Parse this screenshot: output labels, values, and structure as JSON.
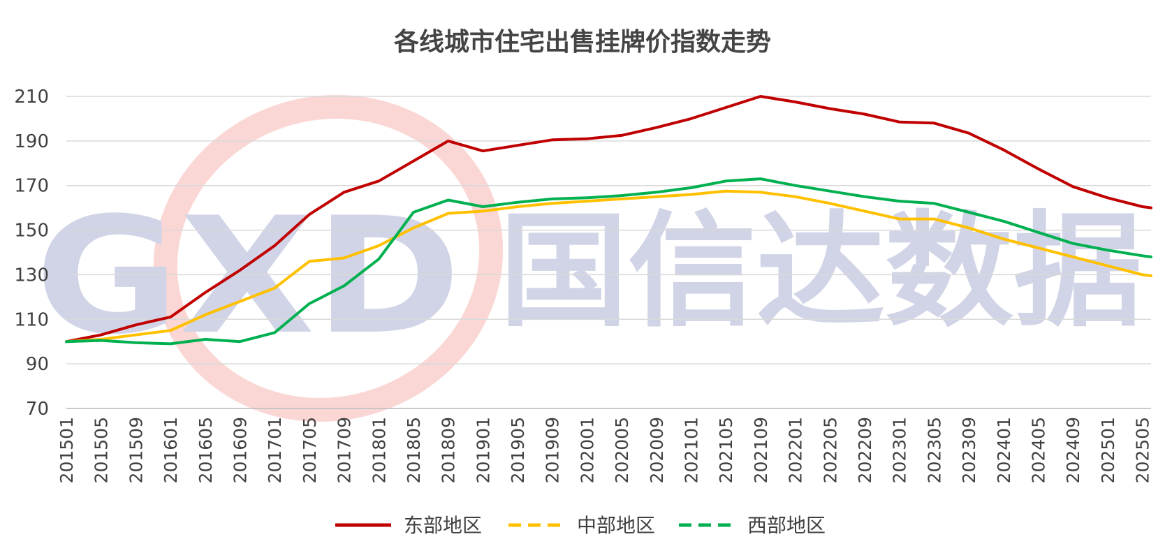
{
  "chart_data": {
    "type": "line",
    "title": "各线城市住宅出售挂牌价指数走势",
    "xlabel": "",
    "ylabel": "",
    "ylim": [
      70,
      210
    ],
    "yticks": [
      70,
      90,
      110,
      130,
      150,
      170,
      190,
      210
    ],
    "x_tick_labels": [
      "201501",
      "201505",
      "201509",
      "201601",
      "201605",
      "201609",
      "201701",
      "201705",
      "201709",
      "201801",
      "201805",
      "201809",
      "201901",
      "201905",
      "201909",
      "202001",
      "202005",
      "202009",
      "202101",
      "202105",
      "202109",
      "202201",
      "202205",
      "202209",
      "202301",
      "202305",
      "202309",
      "202401",
      "202405",
      "202409",
      "202501",
      "202505"
    ],
    "x_start": "201501",
    "x_end": "202506",
    "grid": "horizontal",
    "legend": "bottom",
    "series": [
      {
        "name": "东部地区",
        "color": "#C00000",
        "dash": "solid",
        "points": [
          [
            "201501",
            100
          ],
          [
            "201505",
            103
          ],
          [
            "201509",
            107.5
          ],
          [
            "201601",
            111
          ],
          [
            "201605",
            122
          ],
          [
            "201609",
            132
          ],
          [
            "201701",
            143
          ],
          [
            "201705",
            157
          ],
          [
            "201709",
            167
          ],
          [
            "201801",
            172
          ],
          [
            "201805",
            181
          ],
          [
            "201809",
            190
          ],
          [
            "201901",
            185.5
          ],
          [
            "201905",
            188
          ],
          [
            "201909",
            190.5
          ],
          [
            "202001",
            191
          ],
          [
            "202005",
            192.5
          ],
          [
            "202009",
            196
          ],
          [
            "202101",
            200
          ],
          [
            "202105",
            205
          ],
          [
            "202109",
            210
          ],
          [
            "202201",
            207.5
          ],
          [
            "202205",
            204.5
          ],
          [
            "202209",
            202
          ],
          [
            "202301",
            198.5
          ],
          [
            "202305",
            198
          ],
          [
            "202309",
            193.5
          ],
          [
            "202401",
            186
          ],
          [
            "202405",
            177.5
          ],
          [
            "202409",
            169.5
          ],
          [
            "202501",
            164.5
          ],
          [
            "202505",
            160.5
          ],
          [
            "202506",
            160
          ]
        ]
      },
      {
        "name": "中部地区",
        "color": "#FFC000",
        "dash": "dashed",
        "points": [
          [
            "201501",
            100
          ],
          [
            "201505",
            101
          ],
          [
            "201509",
            103
          ],
          [
            "201601",
            105
          ],
          [
            "201605",
            112
          ],
          [
            "201609",
            118
          ],
          [
            "201701",
            124
          ],
          [
            "201705",
            136
          ],
          [
            "201709",
            137.5
          ],
          [
            "201801",
            143
          ],
          [
            "201805",
            151
          ],
          [
            "201809",
            157.5
          ],
          [
            "201901",
            158.5
          ],
          [
            "201905",
            160.5
          ],
          [
            "201909",
            162
          ],
          [
            "202001",
            163
          ],
          [
            "202005",
            164
          ],
          [
            "202009",
            165
          ],
          [
            "202101",
            166
          ],
          [
            "202105",
            167.5
          ],
          [
            "202109",
            167
          ],
          [
            "202201",
            165
          ],
          [
            "202205",
            162
          ],
          [
            "202209",
            158.5
          ],
          [
            "202301",
            155
          ],
          [
            "202305",
            155
          ],
          [
            "202309",
            151
          ],
          [
            "202401",
            146
          ],
          [
            "202405",
            142
          ],
          [
            "202409",
            138
          ],
          [
            "202501",
            134
          ],
          [
            "202505",
            130
          ],
          [
            "202506",
            129.5
          ]
        ]
      },
      {
        "name": "西部地区",
        "color": "#00B050",
        "dash": "dashed",
        "points": [
          [
            "201501",
            100
          ],
          [
            "201505",
            100.5
          ],
          [
            "201509",
            99.5
          ],
          [
            "201601",
            99
          ],
          [
            "201605",
            101
          ],
          [
            "201609",
            100
          ],
          [
            "201701",
            104
          ],
          [
            "201705",
            117
          ],
          [
            "201709",
            125
          ],
          [
            "201801",
            137
          ],
          [
            "201805",
            158
          ],
          [
            "201809",
            163.5
          ],
          [
            "201901",
            160.5
          ],
          [
            "201905",
            162.5
          ],
          [
            "201909",
            164
          ],
          [
            "202001",
            164.5
          ],
          [
            "202005",
            165.5
          ],
          [
            "202009",
            167
          ],
          [
            "202101",
            169
          ],
          [
            "202105",
            172
          ],
          [
            "202109",
            173
          ],
          [
            "202201",
            170
          ],
          [
            "202205",
            167.5
          ],
          [
            "202209",
            165
          ],
          [
            "202301",
            163
          ],
          [
            "202305",
            162
          ],
          [
            "202309",
            158
          ],
          [
            "202401",
            154
          ],
          [
            "202405",
            149
          ],
          [
            "202409",
            144
          ],
          [
            "202501",
            141
          ],
          [
            "202505",
            138.5
          ],
          [
            "202506",
            138
          ]
        ]
      }
    ]
  },
  "watermark": {
    "logo_text": "GXD",
    "brand_text": "国信达数据",
    "logo_color": "#2E3D8F",
    "ring_color": "#E64A3C"
  }
}
